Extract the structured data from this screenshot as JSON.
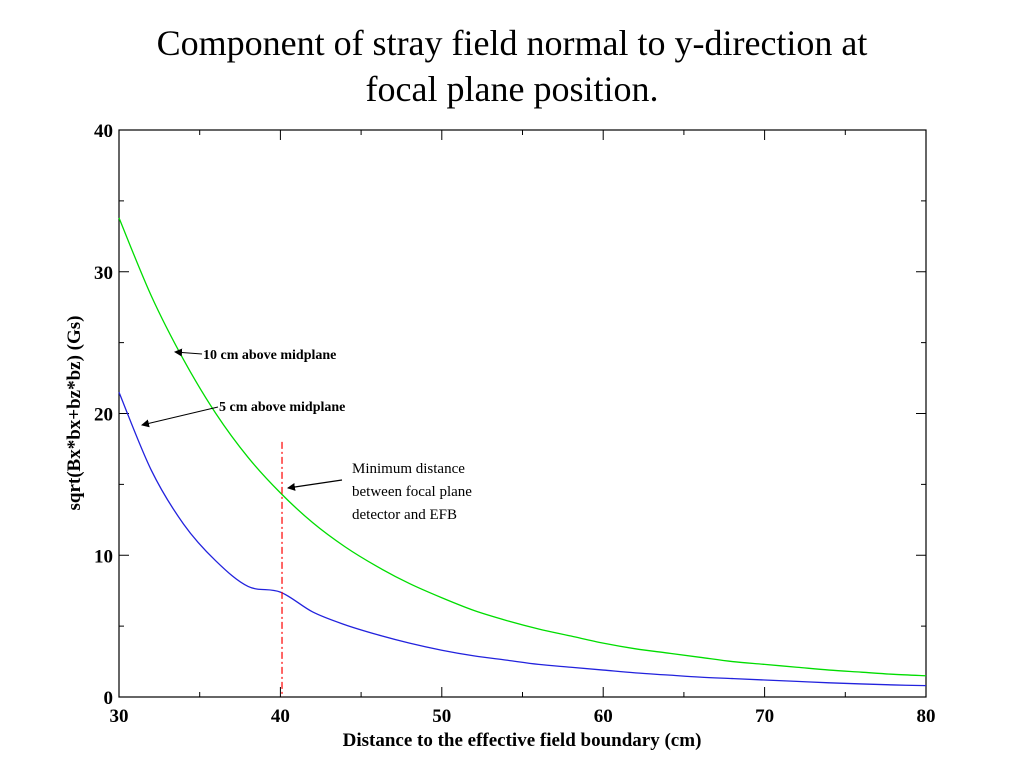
{
  "slide": {
    "title_line1": "Component of stray field normal to y-direction at",
    "title_line2": "focal plane position."
  },
  "chart_data": {
    "type": "line",
    "title": "Component of stray field normal to y-direction at focal plane position.",
    "xlabel": "Distance to the effective field boundary (cm)",
    "ylabel": "sqrt(Bx*bx+bz*bz) (Gs)",
    "xlim": [
      30,
      80
    ],
    "ylim": [
      0,
      40
    ],
    "xticks": [
      30,
      40,
      50,
      60,
      70,
      80
    ],
    "yticks": [
      0,
      10,
      20,
      30,
      40
    ],
    "grid": false,
    "series": [
      {
        "name": "10 cm above midplane",
        "color": "#00dd00",
        "x": [
          30,
          32,
          34,
          36,
          38,
          40,
          42,
          44,
          46,
          48,
          50,
          52,
          54,
          56,
          58,
          60,
          62,
          64,
          66,
          68,
          70,
          72,
          74,
          76,
          78,
          80
        ],
        "y": [
          33.8,
          28.3,
          23.8,
          20.0,
          16.9,
          14.4,
          12.3,
          10.6,
          9.2,
          8.0,
          7.0,
          6.1,
          5.4,
          4.8,
          4.3,
          3.8,
          3.4,
          3.1,
          2.8,
          2.5,
          2.3,
          2.1,
          1.9,
          1.75,
          1.6,
          1.5
        ]
      },
      {
        "name": "5 cm above midplane",
        "color": "#2222dd",
        "x": [
          30,
          32,
          34,
          36,
          38,
          40,
          42,
          44,
          46,
          48,
          50,
          52,
          54,
          56,
          58,
          60,
          62,
          64,
          66,
          68,
          70,
          72,
          74,
          76,
          78,
          80
        ],
        "y": [
          21.5,
          16.0,
          12.2,
          9.6,
          7.8,
          7.4,
          6.0,
          5.1,
          4.4,
          3.8,
          3.3,
          2.9,
          2.6,
          2.3,
          2.1,
          1.9,
          1.7,
          1.55,
          1.4,
          1.3,
          1.2,
          1.1,
          1.0,
          0.92,
          0.85,
          0.8
        ]
      }
    ],
    "reference_line": {
      "x": 40.1,
      "y_range": [
        0,
        18
      ],
      "color": "#ff0000",
      "style": "dash-dot"
    },
    "annotations": [
      {
        "text": "10 cm above midplane",
        "target_series": "10 cm above midplane"
      },
      {
        "text": "5 cm above midplane",
        "target_series": "5 cm above midplane"
      },
      {
        "lines": [
          "Minimum distance",
          "between focal plane",
          "detector and EFB"
        ],
        "target": "reference_line"
      }
    ]
  }
}
